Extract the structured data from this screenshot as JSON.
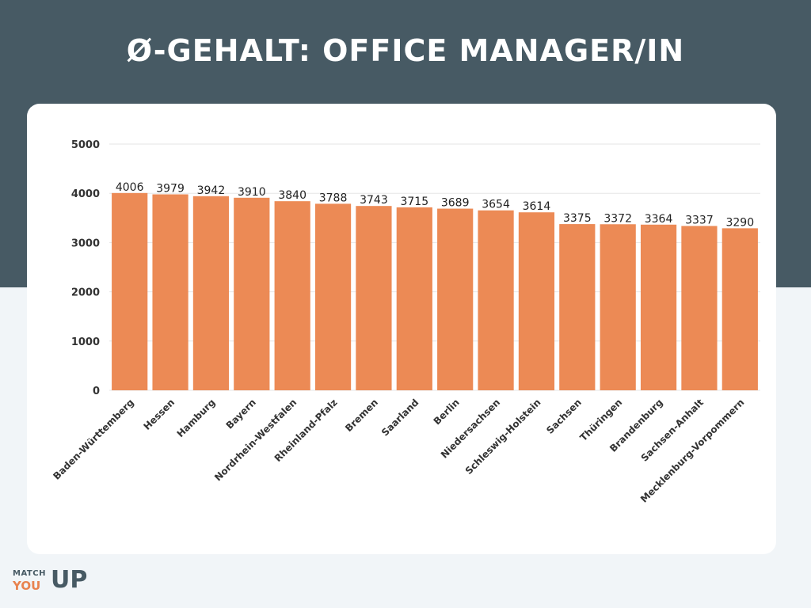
{
  "page": {
    "title": "Ø-Gehalt: Office Manager/in"
  },
  "logo": {
    "line1": "MATCH",
    "line2": "YOU",
    "line3": "UP"
  },
  "colors": {
    "band": "#475a64",
    "bar": "#ec8a55",
    "background": "#f1f5f8"
  },
  "chart_data": {
    "type": "bar",
    "categories": [
      "Baden-Württemberg",
      "Hessen",
      "Hamburg",
      "Bayern",
      "Nordrhein-Westfalen",
      "Rheinland-Pfalz",
      "Bremen",
      "Saarland",
      "Berlin",
      "Niedersachsen",
      "Schleswig-Holstein",
      "Sachsen",
      "Thüringen",
      "Brandenburg",
      "Sachsen-Anhalt",
      "Mecklenburg-Vorpommern"
    ],
    "values": [
      4006,
      3979,
      3942,
      3910,
      3840,
      3788,
      3743,
      3715,
      3689,
      3654,
      3614,
      3375,
      3372,
      3364,
      3337,
      3290
    ],
    "ylim": [
      0,
      5000
    ],
    "yticks": [
      0,
      1000,
      2000,
      3000,
      4000,
      5000
    ],
    "grid": true,
    "data_labels": true
  }
}
